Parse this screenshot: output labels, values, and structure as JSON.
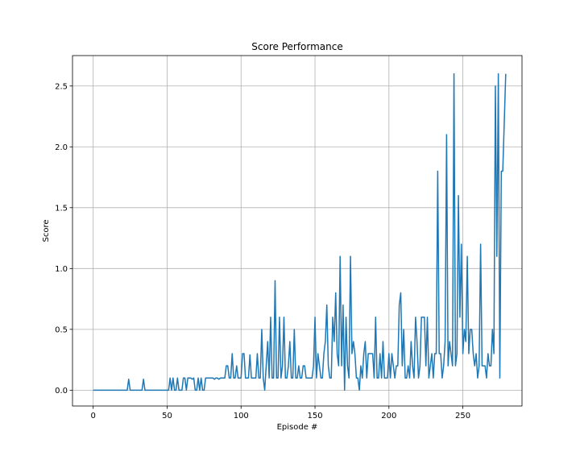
{
  "chart_data": {
    "type": "line",
    "title": "Score Performance",
    "xlabel": "Episode #",
    "ylabel": "Score",
    "xlim": [
      -14,
      290
    ],
    "ylim": [
      -0.13,
      2.75
    ],
    "xticks": [
      0,
      50,
      100,
      150,
      200,
      250
    ],
    "yticks": [
      0.0,
      0.5,
      1.0,
      1.5,
      2.0,
      2.5
    ],
    "xtick_labels": [
      "0",
      "50",
      "100",
      "150",
      "200",
      "250"
    ],
    "ytick_labels": [
      "0.0",
      "0.5",
      "1.0",
      "1.5",
      "2.0",
      "2.5"
    ],
    "grid": true,
    "line_color": "#1f77b4",
    "series": [
      {
        "values": [
          0,
          0,
          0,
          0,
          0,
          0,
          0,
          0,
          0,
          0,
          0,
          0,
          0,
          0,
          0,
          0,
          0,
          0,
          0,
          0,
          0,
          0,
          0,
          0,
          0.09,
          0,
          0,
          0,
          0,
          0,
          0,
          0,
          0,
          0,
          0.09,
          0,
          0,
          0,
          0,
          0,
          0,
          0,
          0,
          0,
          0,
          0,
          0,
          0,
          0,
          0,
          0,
          0,
          0.1,
          0,
          0.1,
          0,
          0,
          0.1,
          0,
          0,
          0,
          0.1,
          0.1,
          0,
          0.1,
          0.1,
          0.1,
          0.09,
          0.1,
          0,
          0,
          0.1,
          0,
          0.1,
          0,
          0,
          0.1,
          0.1,
          0.1,
          0.1,
          0.1,
          0.1,
          0.09,
          0.1,
          0.1,
          0.09,
          0.1,
          0.1,
          0.1,
          0.1,
          0.2,
          0.2,
          0.1,
          0.1,
          0.3,
          0.1,
          0.1,
          0.2,
          0.1,
          0.1,
          0.1,
          0.3,
          0.3,
          0.1,
          0.1,
          0.1,
          0.29,
          0.1,
          0.1,
          0.1,
          0.1,
          0.3,
          0.1,
          0.1,
          0.5,
          0.1,
          0,
          0.2,
          0.4,
          0.1,
          0.6,
          0.1,
          0.1,
          0.9,
          0.1,
          0.1,
          0.6,
          0.1,
          0.2,
          0.6,
          0.1,
          0.1,
          0.2,
          0.4,
          0.1,
          0.1,
          0.5,
          0.1,
          0.1,
          0.2,
          0.1,
          0.1,
          0.2,
          0.2,
          0.1,
          0.1,
          0.1,
          0.1,
          0.1,
          0.2,
          0.6,
          0.1,
          0.3,
          0.2,
          0.1,
          0.1,
          0.3,
          0.4,
          0.7,
          0.2,
          0.1,
          0.1,
          0.6,
          0.4,
          0.8,
          0.3,
          0.2,
          1.1,
          0.2,
          0.7,
          0,
          0.6,
          0.2,
          0.1,
          1.1,
          0.3,
          0.4,
          0.3,
          0.1,
          0.1,
          0,
          0.2,
          0.1,
          0.3,
          0.4,
          0.1,
          0.3,
          0.3,
          0.3,
          0.3,
          0.1,
          0.6,
          0.1,
          0.1,
          0.3,
          0.1,
          0.4,
          0.1,
          0.1,
          0.1,
          0.3,
          0.1,
          0.3,
          0.2,
          0.1,
          0.2,
          0.2,
          0.7,
          0.8,
          0.2,
          0.5,
          0.1,
          0.1,
          0.2,
          0.1,
          0.4,
          0.2,
          0.1,
          0.6,
          0.4,
          0.1,
          0.2,
          0.6,
          0.6,
          0.6,
          0.2,
          0.6,
          0.1,
          0.2,
          0.3,
          0.1,
          0.3,
          0.3,
          1.8,
          0.3,
          0.3,
          0.1,
          0.2,
          0.4,
          2.1,
          0.2,
          0.4,
          0.3,
          0.2,
          2.6,
          0.2,
          0.3,
          1.6,
          0.6,
          1.2,
          0.3,
          0.5,
          0.4,
          1.1,
          0.3,
          0.5,
          0.5,
          0.3,
          0.2,
          0.3,
          0.1,
          0.2,
          1.2,
          0.2,
          0.2,
          0.2,
          0.1,
          0.3,
          0.2,
          0.2,
          0.5,
          0.3,
          2.5,
          1.1,
          2.6,
          0.1,
          1.8,
          1.8,
          2.2,
          2.6
        ]
      }
    ]
  }
}
